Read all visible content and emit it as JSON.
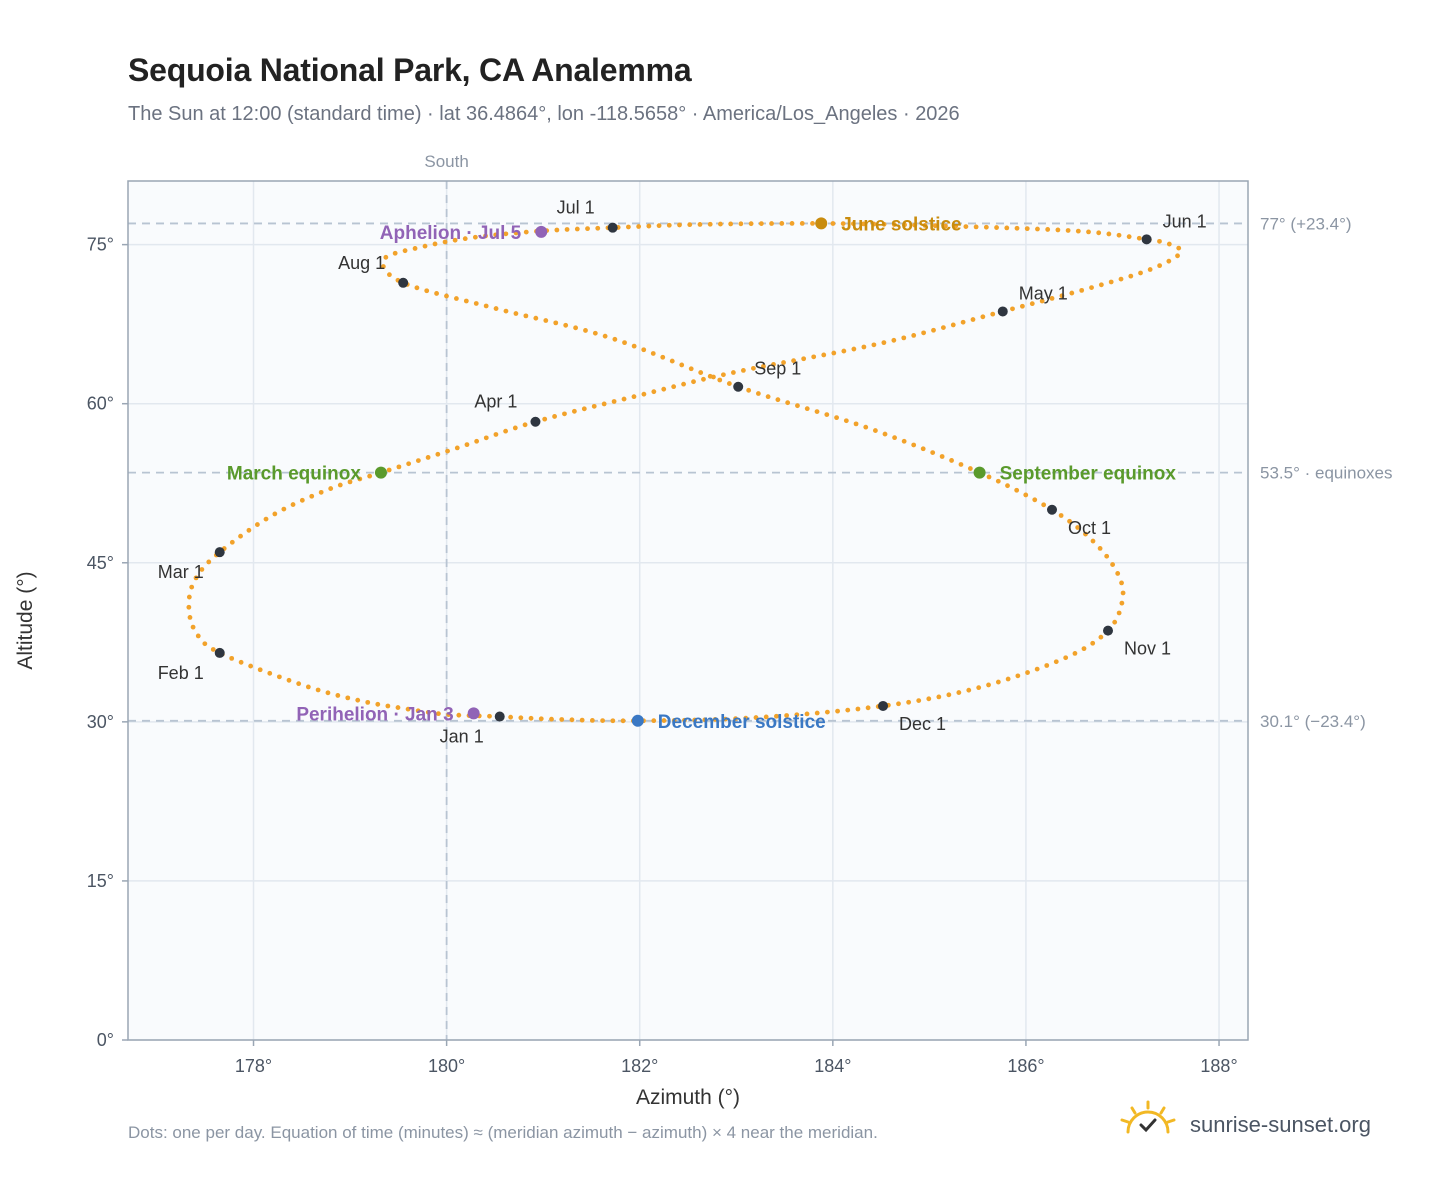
{
  "header": {
    "title": "Sequoia National Park, CA Analemma",
    "subtitle": "The Sun at 12:00 (standard time) · lat 36.4864°, lon -118.5658° · America/Los_Angeles · 2026"
  },
  "footer": {
    "note": "Dots: one per day. Equation of time (minutes) ≈ (meridian azimuth − azimuth) × 4 near the meridian.",
    "brand": "sunrise-sunset.org",
    "logo_icon": "sun-logo-icon"
  },
  "colors": {
    "curve": "#f2a22a",
    "monthly": "#2f3640",
    "equinox": "#5a9a2c",
    "june_solstice": "#c98c0e",
    "december_solstice": "#3a78c4",
    "perihelion_aphelion": "#9163b6",
    "reference_line": "#b8c4d2",
    "grid": "#e2e8ef",
    "plot_bg": "#f9fbfd",
    "frame": "#9aa6b4"
  },
  "chart_data": {
    "type": "scatter",
    "xlabel": "Azimuth (°)",
    "ylabel": "Altitude (°)",
    "xlim": [
      176.7,
      188.3
    ],
    "ylim": [
      0,
      81
    ],
    "xticks": [
      178,
      180,
      182,
      184,
      186,
      188
    ],
    "xtick_labels": [
      "178°",
      "180°",
      "182°",
      "184°",
      "186°",
      "188°"
    ],
    "yticks": [
      0,
      15,
      30,
      45,
      60,
      75
    ],
    "ytick_labels": [
      "0°",
      "15°",
      "30°",
      "45°",
      "60°",
      "75°"
    ],
    "grid": true,
    "south_line": {
      "x": 180,
      "label": "South"
    },
    "reference_lines": [
      {
        "y": 77.0,
        "label": "77° (+23.4°)"
      },
      {
        "y": 53.5,
        "label": "53.5° · equinoxes"
      },
      {
        "y": 30.1,
        "label": "30.1° (−23.4°)"
      }
    ],
    "analemma_curve": [
      {
        "x": 180.55,
        "y": 30.5
      },
      {
        "x": 180.0,
        "y": 30.7
      },
      {
        "x": 179.6,
        "y": 31.2
      },
      {
        "x": 179.1,
        "y": 32.0
      },
      {
        "x": 178.5,
        "y": 33.5
      },
      {
        "x": 177.65,
        "y": 36.5
      },
      {
        "x": 177.4,
        "y": 38.5
      },
      {
        "x": 177.33,
        "y": 41.0
      },
      {
        "x": 177.4,
        "y": 43.5
      },
      {
        "x": 177.65,
        "y": 46.0
      },
      {
        "x": 178.2,
        "y": 49.5
      },
      {
        "x": 178.8,
        "y": 52.0
      },
      {
        "x": 179.32,
        "y": 53.5
      },
      {
        "x": 180.1,
        "y": 55.8
      },
      {
        "x": 180.92,
        "y": 58.3
      },
      {
        "x": 182.0,
        "y": 60.8
      },
      {
        "x": 183.0,
        "y": 63.0
      },
      {
        "x": 184.5,
        "y": 65.7
      },
      {
        "x": 185.76,
        "y": 68.7
      },
      {
        "x": 186.7,
        "y": 71.0
      },
      {
        "x": 187.3,
        "y": 72.7
      },
      {
        "x": 187.6,
        "y": 74.2
      },
      {
        "x": 187.5,
        "y": 75.0
      },
      {
        "x": 187.25,
        "y": 75.5
      },
      {
        "x": 186.5,
        "y": 76.3
      },
      {
        "x": 185.0,
        "y": 76.8
      },
      {
        "x": 183.88,
        "y": 77.0
      },
      {
        "x": 182.6,
        "y": 76.9
      },
      {
        "x": 181.72,
        "y": 76.6
      },
      {
        "x": 181.0,
        "y": 76.3
      },
      {
        "x": 180.3,
        "y": 75.7
      },
      {
        "x": 179.75,
        "y": 74.8
      },
      {
        "x": 179.35,
        "y": 73.6
      },
      {
        "x": 179.55,
        "y": 71.4
      },
      {
        "x": 180.5,
        "y": 69.0
      },
      {
        "x": 181.7,
        "y": 66.2
      },
      {
        "x": 183.02,
        "y": 61.6
      },
      {
        "x": 184.4,
        "y": 57.6
      },
      {
        "x": 185.52,
        "y": 53.5
      },
      {
        "x": 186.27,
        "y": 50.0
      },
      {
        "x": 186.7,
        "y": 47.0
      },
      {
        "x": 186.95,
        "y": 44.0
      },
      {
        "x": 187.0,
        "y": 41.5
      },
      {
        "x": 186.85,
        "y": 38.6
      },
      {
        "x": 186.4,
        "y": 36.0
      },
      {
        "x": 185.5,
        "y": 33.2
      },
      {
        "x": 184.52,
        "y": 31.5
      },
      {
        "x": 183.2,
        "y": 30.4
      },
      {
        "x": 181.98,
        "y": 30.1
      },
      {
        "x": 181.1,
        "y": 30.25
      },
      {
        "x": 180.55,
        "y": 30.5
      }
    ],
    "monthly_points": [
      {
        "label": "Jan 1",
        "x": 180.55,
        "y": 30.5,
        "label_pos": "below-left"
      },
      {
        "label": "Feb 1",
        "x": 177.65,
        "y": 36.5,
        "label_pos": "below-left"
      },
      {
        "label": "Mar 1",
        "x": 177.65,
        "y": 46.0,
        "label_pos": "below-left"
      },
      {
        "label": "Apr 1",
        "x": 180.92,
        "y": 58.3,
        "label_pos": "above-left"
      },
      {
        "label": "May 1",
        "x": 185.76,
        "y": 68.7,
        "label_pos": "above-right"
      },
      {
        "label": "Jun 1",
        "x": 187.25,
        "y": 75.5,
        "label_pos": "above-right"
      },
      {
        "label": "Jul 1",
        "x": 181.72,
        "y": 76.6,
        "label_pos": "above-left"
      },
      {
        "label": "Aug 1",
        "x": 179.55,
        "y": 71.4,
        "label_pos": "above-left"
      },
      {
        "label": "Sep 1",
        "x": 183.02,
        "y": 61.6,
        "label_pos": "above-right"
      },
      {
        "label": "Oct 1",
        "x": 186.27,
        "y": 50.0,
        "label_pos": "below-right"
      },
      {
        "label": "Nov 1",
        "x": 186.85,
        "y": 38.6,
        "label_pos": "below-right"
      },
      {
        "label": "Dec 1",
        "x": 184.52,
        "y": 31.5,
        "label_pos": "below-right"
      }
    ],
    "events": [
      {
        "label": "March equinox",
        "x": 179.32,
        "y": 53.5,
        "color_key": "equinox",
        "side": "left"
      },
      {
        "label": "September equinox",
        "x": 185.52,
        "y": 53.5,
        "color_key": "equinox",
        "side": "right"
      },
      {
        "label": "June solstice",
        "x": 183.88,
        "y": 77.0,
        "color_key": "june_solstice",
        "side": "right"
      },
      {
        "label": "December solstice",
        "x": 181.98,
        "y": 30.1,
        "color_key": "december_solstice",
        "side": "right"
      },
      {
        "label": "Perihelion · Jan 3",
        "x": 180.28,
        "y": 30.8,
        "color_key": "perihelion_aphelion",
        "side": "left"
      },
      {
        "label": "Aphelion · Jul 5",
        "x": 180.98,
        "y": 76.2,
        "color_key": "perihelion_aphelion",
        "side": "left"
      }
    ]
  }
}
